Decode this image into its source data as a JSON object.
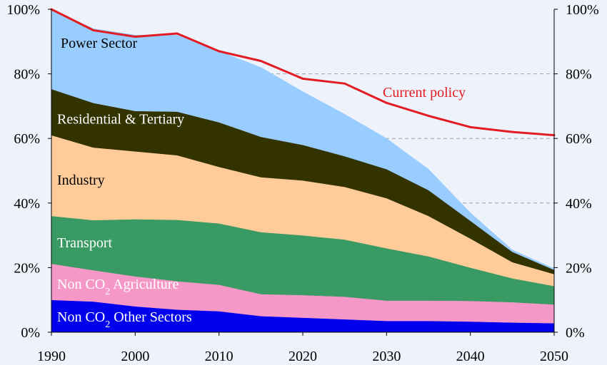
{
  "chart_data": {
    "type": "area",
    "stacked": true,
    "x": [
      1990,
      1995,
      2000,
      2005,
      2010,
      2015,
      2020,
      2025,
      2030,
      2035,
      2040,
      2045,
      2050
    ],
    "x_ticks": [
      "1990",
      "2000",
      "2010",
      "2020",
      "2030",
      "2040",
      "2050"
    ],
    "y_ticks": [
      "0%",
      "20%",
      "40%",
      "60%",
      "80%",
      "100%"
    ],
    "ylim": [
      0,
      100
    ],
    "xlim": [
      1990,
      2050
    ],
    "grid": "dashed horizontal lines in upper right region",
    "series": [
      {
        "name": "Non CO2 Other Sectors",
        "label_main": "Non CO",
        "label_sub": "2",
        "label_rest": " Other Sectors",
        "color": "#0000ee",
        "label_color": "#ffffff",
        "values": [
          10,
          9.5,
          8,
          7,
          6.5,
          5,
          4.5,
          4,
          3.5,
          3.5,
          3.3,
          3,
          2.8
        ]
      },
      {
        "name": "Non CO2 Agriculture",
        "label_main": "Non CO",
        "label_sub": "2",
        "label_rest": " Agriculture",
        "color": "#f598c8",
        "label_color": "#ffffff",
        "values": [
          11.2,
          9.7,
          9.3,
          8.8,
          8.2,
          6.8,
          7,
          7,
          6.3,
          6.3,
          6.4,
          6.3,
          5.8
        ]
      },
      {
        "name": "Transport",
        "color": "#3a9a64",
        "label_color": "#ffffff",
        "values": [
          14.8,
          15.5,
          17.7,
          19,
          19,
          19.2,
          18.5,
          17.7,
          16.2,
          13.7,
          10.3,
          7.4,
          5.7
        ]
      },
      {
        "name": "Industry",
        "color": "#ffcc99",
        "label_color": "#000000",
        "values": [
          25,
          22.5,
          21,
          20,
          17.5,
          17,
          17,
          16.3,
          15.5,
          12.5,
          9,
          5,
          3.7
        ]
      },
      {
        "name": "Residential & Tertiary",
        "color": "#333300",
        "label_color": "#ffffff",
        "values": [
          14.3,
          13.8,
          12.5,
          13.5,
          13.8,
          12.5,
          11,
          9.5,
          9,
          8,
          5.5,
          3.2,
          1.3
        ]
      },
      {
        "name": "Power Sector",
        "color": "#99ccff",
        "label_color": "#000000",
        "values": [
          24.7,
          23,
          23.5,
          23.7,
          22,
          21.5,
          16.5,
          13,
          9.5,
          6.5,
          2.5,
          0.6,
          0.4
        ]
      }
    ],
    "line_series": {
      "name": "Current policy",
      "color": "#e31b23",
      "values": [
        100,
        93.5,
        91.5,
        92.5,
        87,
        84,
        78.5,
        77,
        71,
        67,
        63.5,
        62,
        61
      ]
    }
  }
}
